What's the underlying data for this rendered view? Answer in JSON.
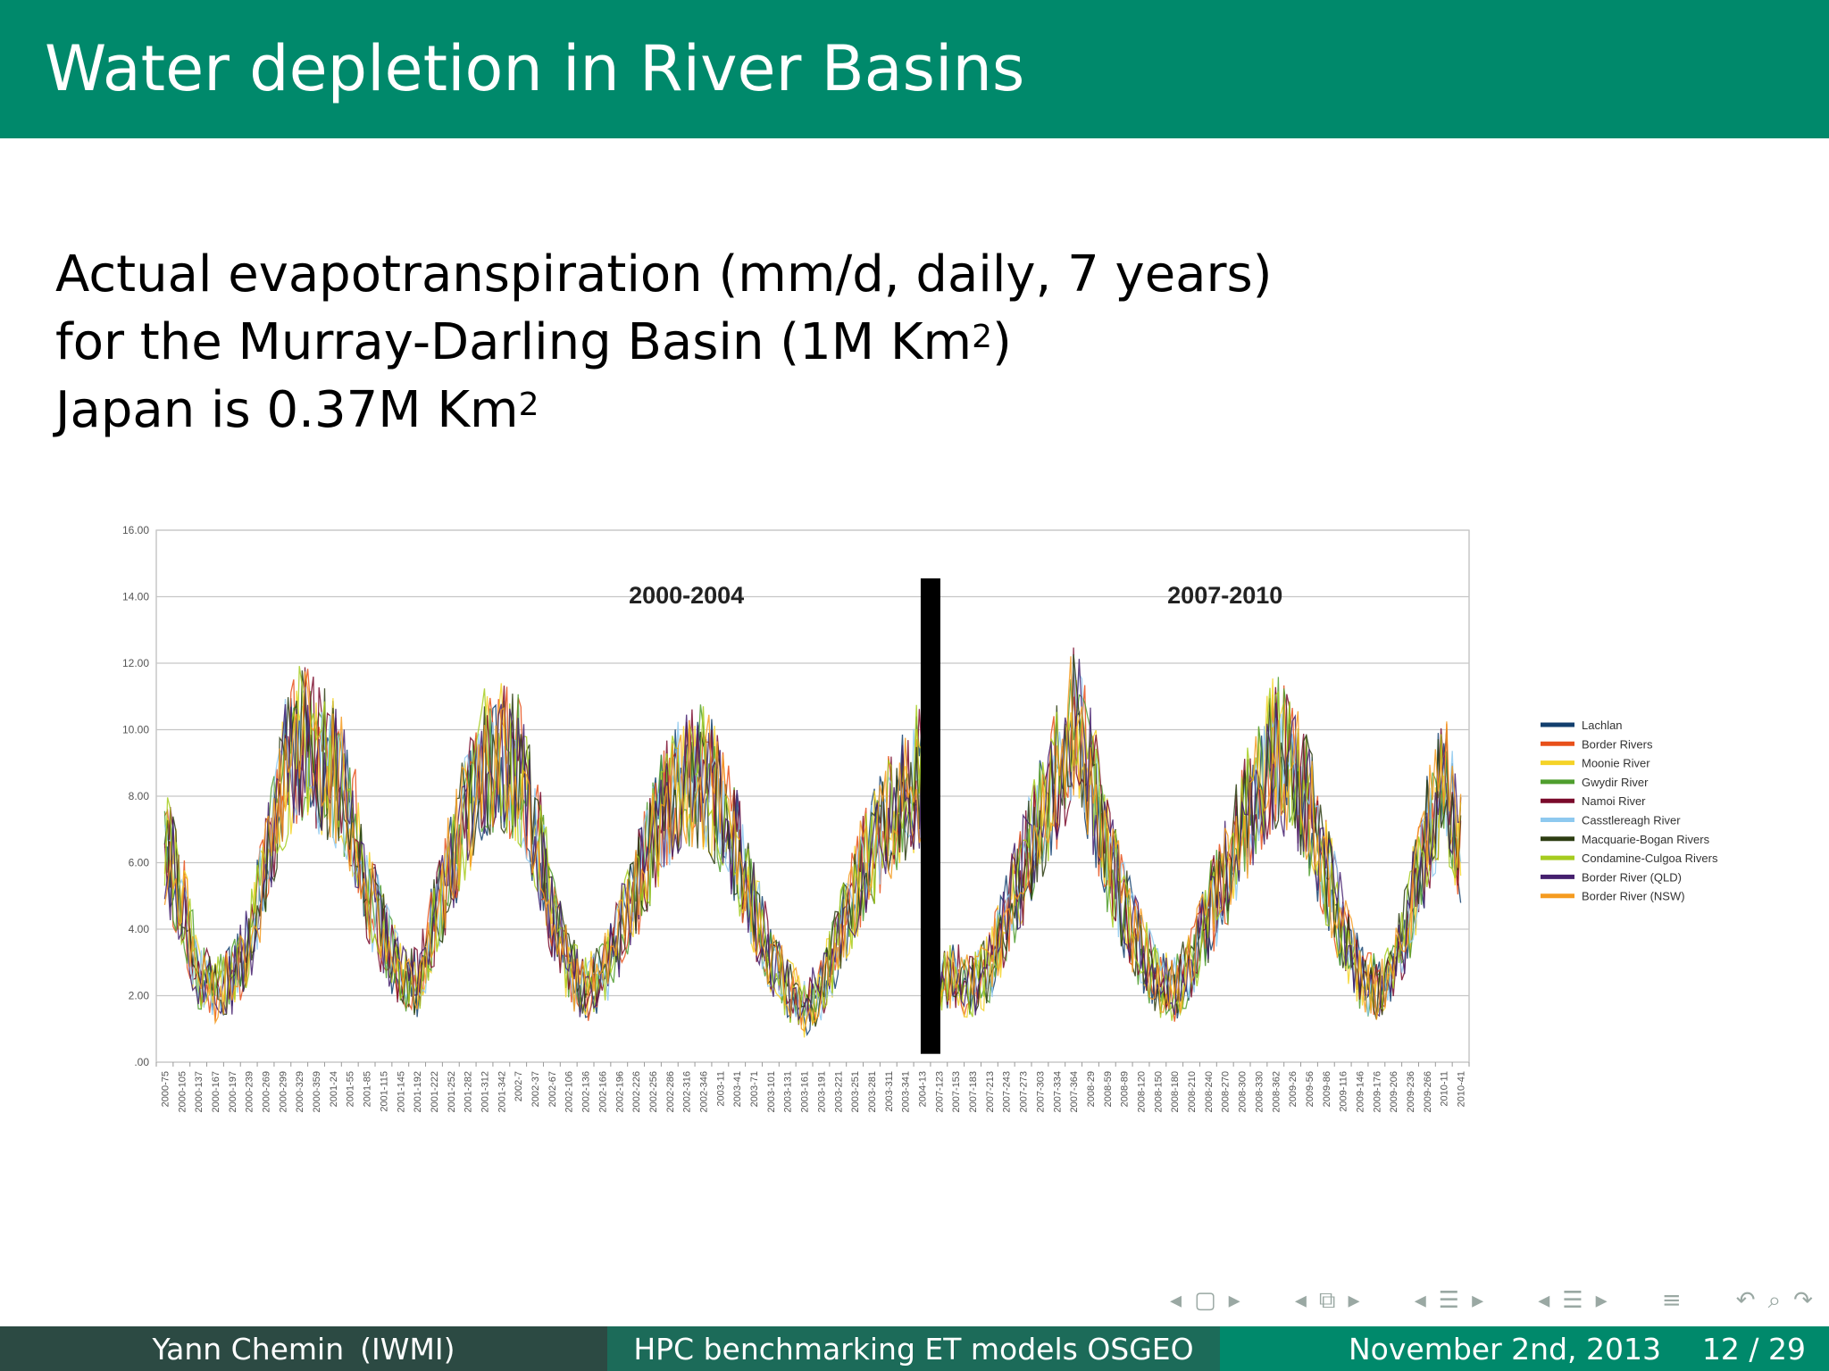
{
  "slide": {
    "title": "Water depletion in River Basins",
    "line1": "Actual evapotranspiration (mm/d, daily, 7 years)",
    "line2_prefix": "for the Murray-Darling Basin (1M Km",
    "line2_sup": "2",
    "line2_suffix": ")",
    "line3_prefix": "Japan is 0.37M Km",
    "line3_sup": "2"
  },
  "footer": {
    "author": "Yann Chemin",
    "institute": "(IWMI)",
    "talk": "HPC benchmarking ET models OSGEO",
    "date": "November 2nd, 2013",
    "page": "12 / 29"
  },
  "nav": {
    "icons": [
      "nav-frame-icon",
      "nav-subsection-icon",
      "nav-section-icon",
      "nav-toc-icon",
      "nav-align-icon",
      "nav-undo-icon",
      "nav-search-icon",
      "nav-redo-icon"
    ]
  },
  "colors": {
    "header": "#00896b",
    "footer_left": "#2c4a43",
    "footer_mid": "#1c6b59",
    "footer_right": "#00896b"
  },
  "chart_data": {
    "type": "line",
    "ylim": [
      0,
      16
    ],
    "yticks": [
      ".00",
      "2.00",
      "4.00",
      "6.00",
      "8.00",
      "10.00",
      "12.00",
      "14.00",
      "16.00"
    ],
    "grid": true,
    "legend_position": "right",
    "annotations": [
      "2000-2004",
      "2007-2010"
    ],
    "x_labels": [
      "2000-75",
      "2000-105",
      "2000-137",
      "2000-167",
      "2000-197",
      "2000-239",
      "2000-269",
      "2000-299",
      "2000-329",
      "2000-359",
      "2001-24",
      "2001-55",
      "2001-85",
      "2001-115",
      "2001-145",
      "2001-192",
      "2001-222",
      "2001-252",
      "2001-282",
      "2001-312",
      "2001-342",
      "2002-7",
      "2002-37",
      "2002-67",
      "2002-106",
      "2002-136",
      "2002-166",
      "2002-196",
      "2002-226",
      "2002-256",
      "2002-286",
      "2002-316",
      "2002-346",
      "2003-11",
      "2003-41",
      "2003-71",
      "2003-101",
      "2003-131",
      "2003-161",
      "2003-191",
      "2003-221",
      "2003-251",
      "2003-281",
      "2003-311",
      "2003-341",
      "2004-13",
      "2007-123",
      "2007-153",
      "2007-183",
      "2007-213",
      "2007-243",
      "2007-273",
      "2007-303",
      "2007-334",
      "2007-364",
      "2008-29",
      "2008-59",
      "2008-89",
      "2008-120",
      "2008-150",
      "2008-180",
      "2008-210",
      "2008-240",
      "2008-270",
      "2008-300",
      "2008-330",
      "2008-362",
      "2009-26",
      "2009-56",
      "2009-86",
      "2009-116",
      "2009-146",
      "2009-176",
      "2009-206",
      "2009-236",
      "2009-266",
      "2010-11",
      "2010-41"
    ],
    "gap_after_label": "2004-13",
    "series": [
      {
        "name": "Lachlan",
        "color": "#123f6e"
      },
      {
        "name": "Border Rivers",
        "color": "#e8501a"
      },
      {
        "name": "Moonie River",
        "color": "#f5d327"
      },
      {
        "name": "Gwydir River",
        "color": "#4f9e2e"
      },
      {
        "name": "Namoi River",
        "color": "#7a0a2b"
      },
      {
        "name": "Casstlereagh River",
        "color": "#8ec9ef"
      },
      {
        "name": "Macquarie-Bogan Rivers",
        "color": "#2d3d12"
      },
      {
        "name": "Condamine-Culgoa Rivers",
        "color": "#a6cc1f"
      },
      {
        "name": "Border River (QLD)",
        "color": "#45206e"
      },
      {
        "name": "Border River (NSW)",
        "color": "#f59b20"
      }
    ],
    "envelope_segments": [
      {
        "points": [
          [
            0,
            6.5
          ],
          [
            1,
            5.0
          ],
          [
            2,
            2.6
          ],
          [
            3,
            2.2
          ],
          [
            4,
            2.5
          ],
          [
            5,
            3.5
          ],
          [
            6,
            5.8
          ],
          [
            7,
            8.5
          ],
          [
            8,
            9.8
          ],
          [
            9,
            9.2
          ],
          [
            10,
            8.8
          ],
          [
            11,
            7.8
          ],
          [
            12,
            5.2
          ],
          [
            13,
            3.8
          ],
          [
            14,
            2.6
          ],
          [
            15,
            2.4
          ],
          [
            16,
            4.2
          ],
          [
            17,
            6.0
          ],
          [
            18,
            7.6
          ],
          [
            19,
            9.0
          ],
          [
            20,
            9.2
          ],
          [
            21,
            8.8
          ],
          [
            22,
            7.2
          ],
          [
            23,
            4.6
          ],
          [
            24,
            2.8
          ],
          [
            25,
            2.2
          ],
          [
            26,
            2.6
          ],
          [
            27,
            3.8
          ],
          [
            28,
            5.2
          ],
          [
            29,
            6.8
          ],
          [
            30,
            7.8
          ],
          [
            31,
            8.4
          ],
          [
            32,
            8.6
          ],
          [
            33,
            7.8
          ],
          [
            34,
            6.4
          ],
          [
            35,
            4.6
          ],
          [
            36,
            3.2
          ],
          [
            37,
            2.2
          ],
          [
            38,
            1.6
          ],
          [
            39,
            2.2
          ],
          [
            40,
            3.6
          ],
          [
            41,
            5.2
          ],
          [
            42,
            6.4
          ],
          [
            43,
            7.4
          ],
          [
            44,
            8.0
          ],
          [
            45,
            8.8
          ]
        ]
      },
      {
        "points": [
          [
            46,
            2.2
          ],
          [
            47,
            2.6
          ],
          [
            48,
            2.2
          ],
          [
            49,
            2.8
          ],
          [
            50,
            4.4
          ],
          [
            51,
            5.8
          ],
          [
            52,
            7.2
          ],
          [
            53,
            8.6
          ],
          [
            54,
            10.2
          ],
          [
            55,
            8.8
          ],
          [
            56,
            6.2
          ],
          [
            57,
            4.6
          ],
          [
            58,
            3.4
          ],
          [
            59,
            2.4
          ],
          [
            60,
            2.2
          ],
          [
            61,
            3.0
          ],
          [
            62,
            4.4
          ],
          [
            63,
            5.6
          ],
          [
            64,
            7.0
          ],
          [
            65,
            8.4
          ],
          [
            66,
            9.4
          ],
          [
            67,
            8.8
          ],
          [
            68,
            7.6
          ],
          [
            69,
            5.8
          ],
          [
            70,
            4.0
          ],
          [
            71,
            2.6
          ],
          [
            72,
            2.2
          ],
          [
            73,
            2.6
          ],
          [
            74,
            4.6
          ],
          [
            75,
            6.8
          ],
          [
            76,
            8.6
          ],
          [
            77,
            6.6
          ]
        ]
      }
    ]
  }
}
